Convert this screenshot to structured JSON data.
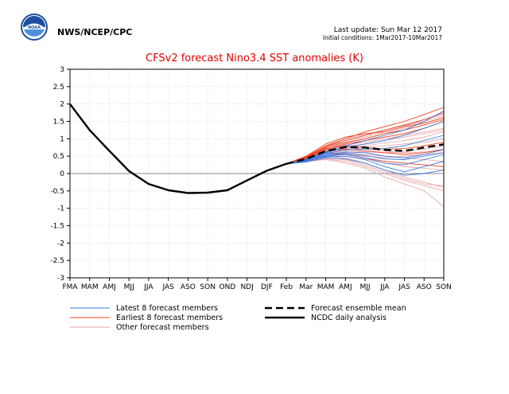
{
  "header": {
    "agency": "NWS/NCEP/CPC",
    "logo_text": "NOAA",
    "last_update": "Last update: Sun Mar 12 2017",
    "initial_conditions": "Initial conditions: 1Mar2017-10Mar2017"
  },
  "colors": {
    "title": "#e00000",
    "latest_members": "#3a78e0",
    "earliest_members": "#f0401e",
    "other_members": "#e6a0a0",
    "mean": "#000000",
    "zero_line": "#888888",
    "logo_blue": "#1b4fa0"
  },
  "chart_data": {
    "type": "line",
    "title": "CFSv2 forecast Nino3.4 SST anomalies (K)",
    "xlabel": "",
    "ylabel": "",
    "ylim": [
      -3,
      3
    ],
    "yticks": [
      "3",
      "2.5",
      "2",
      "1.5",
      "1",
      "0.5",
      "0",
      "-0.5",
      "-1",
      "-1.5",
      "-2",
      "-2.5",
      "-3"
    ],
    "categories": [
      "FMA",
      "MAM",
      "AMJ",
      "MJJ",
      "JJA",
      "JAS",
      "ASO",
      "SON",
      "OND",
      "NDJ",
      "DJF",
      "Feb",
      "Mar",
      "MAM",
      "AMJ",
      "MJJ",
      "JJA",
      "JAS",
      "ASO",
      "SON"
    ],
    "grid": true,
    "legend_position": "bottom",
    "legend": [
      {
        "label": "Latest 8 forecast members",
        "style": "latest"
      },
      {
        "label": "Earliest 8 forecast members",
        "style": "earliest"
      },
      {
        "label": "Other forecast members",
        "style": "other"
      },
      {
        "label": "Forecast ensemble mean",
        "style": "mean"
      },
      {
        "label": "NCDC daily analysis",
        "style": "analysis"
      }
    ],
    "analysis": {
      "name": "NCDC daily analysis",
      "x": [
        0,
        1,
        2,
        3,
        4,
        5,
        6,
        7,
        8,
        9,
        10,
        11
      ],
      "values": [
        2.0,
        1.25,
        0.65,
        0.07,
        -0.3,
        -0.48,
        -0.56,
        -0.55,
        -0.48,
        -0.2,
        0.08,
        0.28
      ]
    },
    "ensemble_mean": {
      "name": "Forecast ensemble mean",
      "x": [
        11,
        12,
        13,
        14,
        15,
        16,
        17,
        18,
        19
      ],
      "values": [
        0.28,
        0.42,
        0.65,
        0.76,
        0.75,
        0.68,
        0.65,
        0.75,
        0.84
      ]
    },
    "members": {
      "x": [
        11,
        12,
        13,
        14,
        15,
        16,
        17,
        18,
        19
      ],
      "latest": [
        [
          0.28,
          0.35,
          0.5,
          0.55,
          0.45,
          0.3,
          0.25,
          0.4,
          0.55
        ],
        [
          0.28,
          0.38,
          0.55,
          0.62,
          0.6,
          0.5,
          0.45,
          0.55,
          0.7
        ],
        [
          0.28,
          0.4,
          0.6,
          0.75,
          0.85,
          0.95,
          1.1,
          1.3,
          1.5
        ],
        [
          0.28,
          0.33,
          0.45,
          0.42,
          0.3,
          0.1,
          -0.05,
          0.0,
          0.1
        ],
        [
          0.28,
          0.36,
          0.52,
          0.58,
          0.52,
          0.42,
          0.4,
          0.5,
          0.6
        ],
        [
          0.28,
          0.41,
          0.62,
          0.8,
          0.95,
          1.1,
          1.25,
          1.5,
          1.8
        ],
        [
          0.28,
          0.37,
          0.48,
          0.5,
          0.4,
          0.2,
          0.05,
          0.2,
          0.35
        ],
        [
          0.28,
          0.39,
          0.58,
          0.68,
          0.7,
          0.72,
          0.8,
          0.95,
          1.1
        ]
      ],
      "earliest": [
        [
          0.28,
          0.48,
          0.8,
          1.0,
          1.2,
          1.35,
          1.5,
          1.7,
          1.9
        ],
        [
          0.28,
          0.45,
          0.7,
          0.85,
          0.95,
          1.05,
          1.15,
          1.3,
          1.5
        ],
        [
          0.28,
          0.5,
          0.85,
          1.05,
          1.15,
          1.2,
          1.35,
          1.45,
          1.6
        ],
        [
          0.28,
          0.44,
          0.65,
          0.7,
          0.65,
          0.6,
          0.55,
          0.6,
          0.7
        ],
        [
          0.28,
          0.47,
          0.75,
          0.9,
          1.0,
          1.15,
          1.25,
          1.4,
          1.55
        ],
        [
          0.28,
          0.42,
          0.6,
          0.55,
          0.45,
          0.35,
          0.3,
          0.25,
          0.2
        ],
        [
          0.28,
          0.46,
          0.72,
          0.8,
          0.75,
          0.7,
          0.72,
          0.8,
          0.9
        ],
        [
          0.28,
          0.49,
          0.78,
          0.95,
          1.1,
          1.25,
          1.4,
          1.55,
          1.75
        ]
      ],
      "other": [
        [
          0.28,
          0.35,
          0.4,
          0.3,
          0.15,
          -0.1,
          -0.3,
          -0.5,
          -0.95
        ],
        [
          0.28,
          0.38,
          0.5,
          0.45,
          0.3,
          0.1,
          -0.1,
          -0.25,
          -0.4
        ],
        [
          0.28,
          0.4,
          0.55,
          0.6,
          0.55,
          0.5,
          0.45,
          0.4,
          0.35
        ],
        [
          0.28,
          0.42,
          0.62,
          0.7,
          0.75,
          0.8,
          0.85,
          0.9,
          1.0
        ],
        [
          0.28,
          0.44,
          0.68,
          0.82,
          0.9,
          1.0,
          1.1,
          1.2,
          1.3
        ],
        [
          0.28,
          0.36,
          0.45,
          0.4,
          0.25,
          0.05,
          -0.15,
          -0.3,
          -0.35
        ],
        [
          0.28,
          0.45,
          0.7,
          0.88,
          1.0,
          1.15,
          1.3,
          1.45,
          1.6
        ],
        [
          0.28,
          0.39,
          0.52,
          0.55,
          0.5,
          0.45,
          0.5,
          0.55,
          0.6
        ],
        [
          0.28,
          0.43,
          0.66,
          0.78,
          0.85,
          0.95,
          1.05,
          1.15,
          1.25
        ],
        [
          0.28,
          0.37,
          0.48,
          0.5,
          0.42,
          0.3,
          0.2,
          0.15,
          0.1
        ],
        [
          0.28,
          0.41,
          0.6,
          0.72,
          0.8,
          0.88,
          0.95,
          1.05,
          1.2
        ],
        [
          0.28,
          0.46,
          0.74,
          0.95,
          1.05,
          1.2,
          1.35,
          1.55,
          1.7
        ],
        [
          0.28,
          0.34,
          0.42,
          0.35,
          0.2,
          0.0,
          -0.2,
          -0.35,
          -0.5
        ],
        [
          0.28,
          0.4,
          0.58,
          0.65,
          0.62,
          0.6,
          0.62,
          0.7,
          0.8
        ],
        [
          0.28,
          0.43,
          0.64,
          0.74,
          0.7,
          0.65,
          0.6,
          0.62,
          0.65
        ],
        [
          0.28,
          0.47,
          0.78,
          1.0,
          1.12,
          1.25,
          1.38,
          1.5,
          1.65
        ]
      ]
    }
  }
}
